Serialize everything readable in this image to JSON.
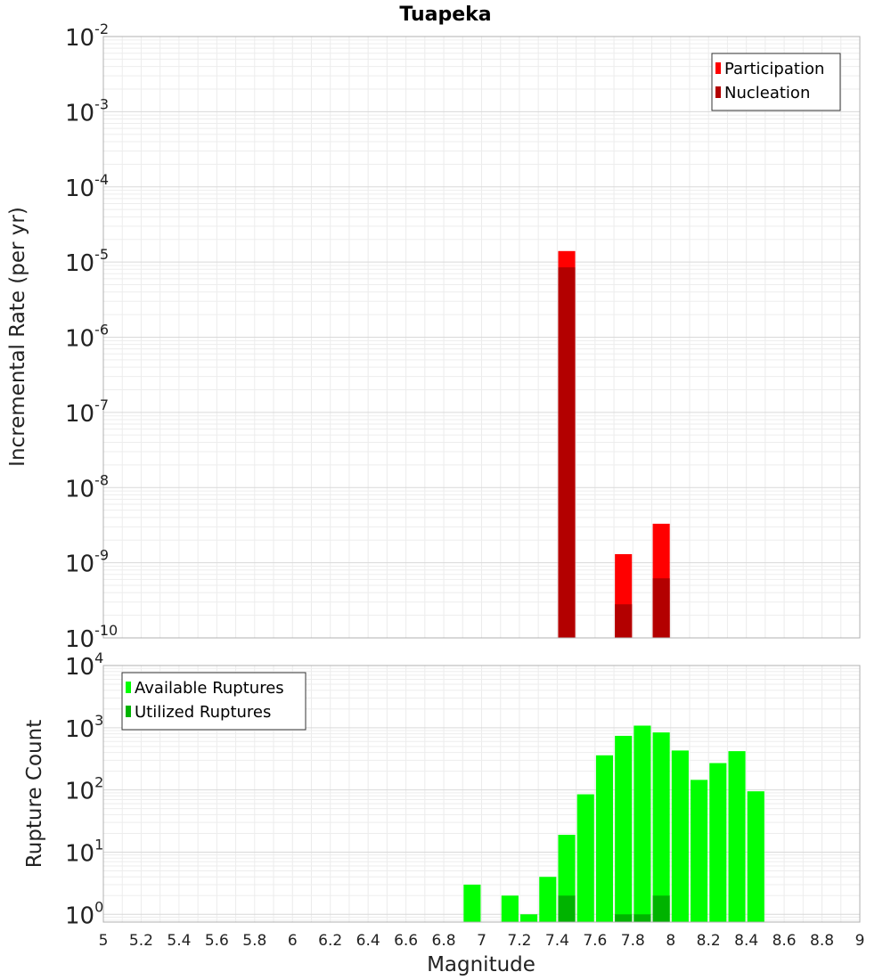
{
  "chart_data": [
    {
      "type": "bar",
      "title": "Tuapeka",
      "xlabel": "",
      "ylabel": "Incremental Rate (per yr)",
      "xlim": [
        5,
        9
      ],
      "ylim": [
        1e-10,
        0.01
      ],
      "y_scale": "log",
      "y_tick_exponents": [
        -10,
        -9,
        -8,
        -7,
        -6,
        -5,
        -4,
        -3,
        -2
      ],
      "grid": true,
      "bar_width": 0.09,
      "legend": {
        "placement": "top-right"
      },
      "series": [
        {
          "name": "Participation",
          "color": "#ff0000",
          "x": [
            7.45,
            7.75,
            7.95
          ],
          "values": [
            1.4e-05,
            1.3e-09,
            3.3e-09
          ]
        },
        {
          "name": "Nucleation",
          "color": "#b30000",
          "x": [
            7.45,
            7.75,
            7.95
          ],
          "values": [
            8.5e-06,
            2.8e-10,
            6.2e-10
          ]
        }
      ]
    },
    {
      "type": "bar",
      "title": "",
      "xlabel": "Magnitude",
      "ylabel": "Rupture Count",
      "xlim": [
        5,
        9
      ],
      "ylim": [
        0.75,
        10000.0
      ],
      "y_scale": "log",
      "y_tick_exponents": [
        0,
        1,
        2,
        3,
        4
      ],
      "x_ticks": [
        "5",
        "5.2",
        "5.4",
        "5.6",
        "5.8",
        "6",
        "6.2",
        "6.4",
        "6.6",
        "6.8",
        "7",
        "7.2",
        "7.4",
        "7.6",
        "7.8",
        "8",
        "8.2",
        "8.4",
        "8.6",
        "8.8",
        "9"
      ],
      "grid": true,
      "bar_width": 0.09,
      "legend": {
        "placement": "top-left"
      },
      "series": [
        {
          "name": "Available Ruptures",
          "color": "#00ff00",
          "x": [
            6.95,
            7.15,
            7.25,
            7.35,
            7.45,
            7.55,
            7.65,
            7.75,
            7.85,
            7.95,
            8.05,
            8.15,
            8.25,
            8.35,
            8.45
          ],
          "values": [
            3,
            2,
            1,
            4,
            19,
            85,
            360,
            740,
            1080,
            840,
            430,
            145,
            270,
            420,
            95
          ]
        },
        {
          "name": "Utilized Ruptures",
          "color": "#00b300",
          "x": [
            7.45,
            7.75,
            7.85,
            7.95
          ],
          "values": [
            2,
            1,
            1,
            2
          ]
        }
      ]
    }
  ]
}
